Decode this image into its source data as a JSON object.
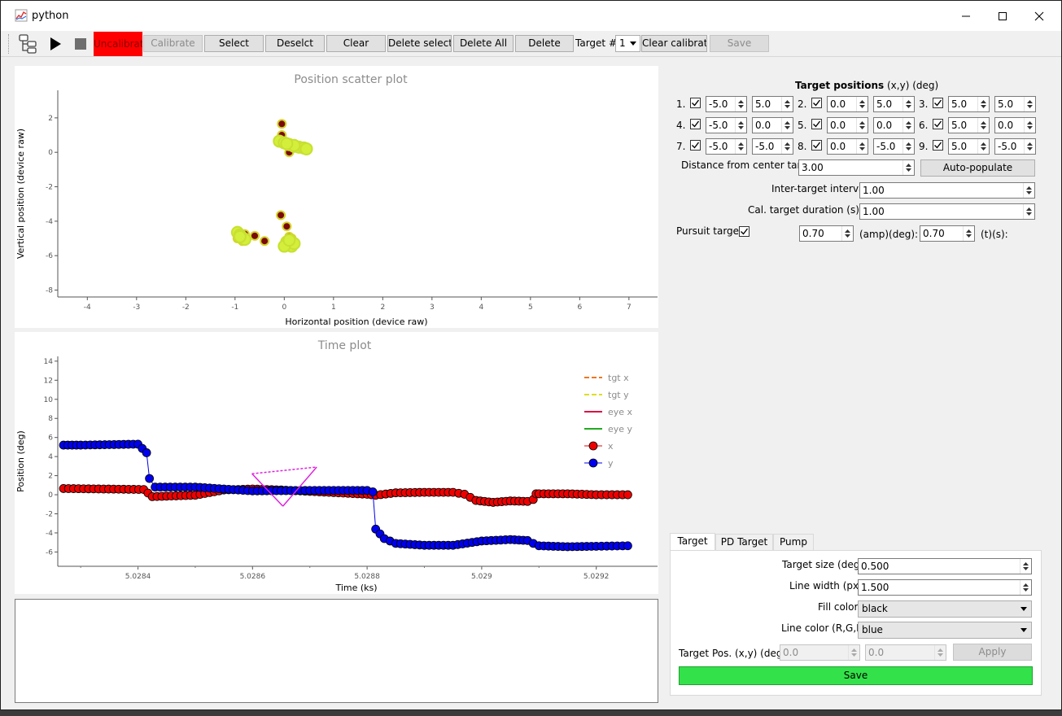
{
  "window": {
    "title": "python"
  },
  "toolbar": {
    "status": "Uncalibrated",
    "calibrate": "Calibrate",
    "select": "Select",
    "deselect": "Deselct",
    "clear": "Clear",
    "delete_selected": "Delete selected",
    "delete_all": "Delete All",
    "delete": "Delete",
    "target_label": "Target #:",
    "target_value": "1",
    "clear_calibration": "Clear calibration",
    "save": "Save"
  },
  "scatter_plot": {
    "chart_data": {
      "type": "scatter",
      "title": "Position scatter plot",
      "xlabel": "Horizontal position (device raw)",
      "ylabel": "Vertical position (device raw)",
      "xlim": [
        -4.6,
        7.3
      ],
      "ylim": [
        -8.4,
        3.6
      ],
      "xticks": [
        "-4",
        "-3",
        "-2",
        "-1",
        "0",
        "1",
        "2",
        "3",
        "4",
        "5",
        "6",
        "7"
      ],
      "yticks": [
        "2",
        "0",
        "-2",
        "-4",
        "-6",
        "-8"
      ],
      "series": [
        {
          "color": "#7a0a0a",
          "edge": "#d4d42a",
          "x": [
            -0.05,
            -0.05,
            0.1,
            -0.08,
            -0.07,
            0.05,
            -0.6,
            -0.8,
            -0.95,
            -0.85,
            -0.4,
            0.1,
            0.15
          ],
          "y": [
            1.65,
            1.0,
            0.0,
            0.6,
            -3.65,
            -4.3,
            -4.85,
            -4.75,
            -5.0,
            -5.15,
            -5.15,
            -4.9,
            -5.0
          ]
        },
        {
          "color": "#d4ee3c",
          "edge": "#c8e030",
          "x": [
            -0.1,
            0.0,
            0.1,
            0.2,
            0.3,
            0.4,
            0.45,
            0.2,
            0.05,
            -0.95,
            -0.9,
            -0.85,
            -0.8,
            -0.9,
            0.05,
            0.1,
            0.15,
            0.2,
            0.0,
            0.1
          ],
          "y": [
            0.65,
            0.55,
            0.45,
            0.35,
            0.3,
            0.25,
            0.2,
            0.4,
            0.5,
            -4.65,
            -4.8,
            -4.95,
            -5.05,
            -4.9,
            -5.2,
            -5.35,
            -5.45,
            -5.3,
            -5.45,
            -5.1
          ]
        }
      ]
    }
  },
  "time_plot": {
    "chart_data": {
      "type": "line",
      "title": "Time plot",
      "xlabel": "Time (ks)",
      "ylabel": "Position (deg)",
      "xlim": [
        5.02826,
        5.029307
      ],
      "ylim": [
        -7.5,
        14.5
      ],
      "xticks": [
        "5.0284",
        "5.0286",
        "5.0288",
        "5.029",
        "5.0292"
      ],
      "yticks": [
        "14",
        "12",
        "10",
        "8",
        "6",
        "4",
        "2",
        "0",
        "-2",
        "-4",
        "-6"
      ],
      "legend": [
        "tgt x",
        "tgt y",
        "eye x",
        "eye y",
        "x",
        "y"
      ],
      "legend_colors": [
        "#ee7722",
        "#dddd22",
        "#dd1144",
        "#22aa22",
        "#ee0000",
        "#0000ee"
      ],
      "series": [
        {
          "name": "x",
          "color": "#ee0000",
          "x": [
            5.02827,
            5.02841,
            5.028425,
            5.0285,
            5.02855,
            5.0286,
            5.02865,
            5.0287,
            5.02875,
            5.0288,
            5.028815,
            5.02885,
            5.0289,
            5.02895,
            5.02897,
            5.02899,
            5.02902,
            5.02905,
            5.02908,
            5.02909,
            5.029095,
            5.0291,
            5.02915,
            5.0292,
            5.029255
          ],
          "y": [
            0.65,
            0.55,
            -0.2,
            -0.05,
            0.5,
            0.6,
            0.5,
            0.35,
            0.2,
            0.05,
            -0.05,
            0.2,
            0.25,
            0.25,
            0.05,
            -0.6,
            -0.8,
            -0.65,
            -0.7,
            -0.5,
            0.1,
            0.1,
            0.1,
            0.0,
            0.0
          ]
        },
        {
          "name": "y",
          "color": "#0000ee",
          "x": [
            5.02827,
            5.0283,
            5.02835,
            5.0284,
            5.028415,
            5.02842,
            5.02843,
            5.0285,
            5.0286,
            5.0287,
            5.0288,
            5.02881,
            5.028815,
            5.02883,
            5.02885,
            5.0289,
            5.02895,
            5.029,
            5.02905,
            5.02908,
            5.02909,
            5.0291,
            5.02915,
            5.0292,
            5.029255
          ],
          "y": [
            5.2,
            5.2,
            5.25,
            5.3,
            4.4,
            1.7,
            0.8,
            0.8,
            0.4,
            0.45,
            0.45,
            0.3,
            -3.6,
            -4.6,
            -5.1,
            -5.3,
            -5.3,
            -4.85,
            -4.7,
            -4.8,
            -5.1,
            -5.35,
            -5.45,
            -5.4,
            -5.35
          ]
        }
      ],
      "triangle": {
        "color": "#dd22dd",
        "x": [
          5.028599,
          5.028712,
          5.028653
        ],
        "y": [
          2.2,
          2.9,
          -1.2
        ]
      }
    }
  },
  "target_positions": {
    "title_bold": "Target positions",
    "title_rest": "(x,y) (deg)",
    "rows": [
      {
        "num": "1.",
        "x": "-5.0",
        "y": "5.0"
      },
      {
        "num": "2.",
        "x": "0.0",
        "y": "5.0"
      },
      {
        "num": "3.",
        "x": "5.0",
        "y": "5.0"
      },
      {
        "num": "4.",
        "x": "-5.0",
        "y": "0.0"
      },
      {
        "num": "5.",
        "x": "0.0",
        "y": "0.0"
      },
      {
        "num": "6.",
        "x": "5.0",
        "y": "0.0"
      },
      {
        "num": "7.",
        "x": "-5.0",
        "y": "-5.0"
      },
      {
        "num": "8.",
        "x": "0.0",
        "y": "-5.0"
      },
      {
        "num": "9.",
        "x": "5.0",
        "y": "-5.0"
      }
    ]
  },
  "settings": {
    "distance_label": "Distance from center target:",
    "distance_value": "3.00",
    "auto_populate": "Auto-populate",
    "interval_label": "Inter-target interval:",
    "interval_value": "1.00",
    "duration_label": "Cal. target duration (s):",
    "duration_value": "1.00",
    "pursuit_label": "Pursuit target:",
    "amp_value": "0.70",
    "amp_label": "(amp)(deg):",
    "t_value": "0.70",
    "t_label": "(t)(s):"
  },
  "tabs": {
    "items": [
      "Target",
      "PD Target",
      "Pump"
    ],
    "target_size_label": "Target size (deg):",
    "target_size_value": "0.500",
    "line_width_label": "Line width (px):",
    "line_width_value": "1.500",
    "fill_color_label": "Fill color:",
    "fill_color_value": "black",
    "line_color_label": "Line color (R,G,B):",
    "line_color_value": "blue",
    "target_pos_label": "Target Pos. (x,y) (deg):",
    "target_pos_x": "0.0",
    "target_pos_y": "0.0",
    "apply": "Apply",
    "save": "Save"
  }
}
